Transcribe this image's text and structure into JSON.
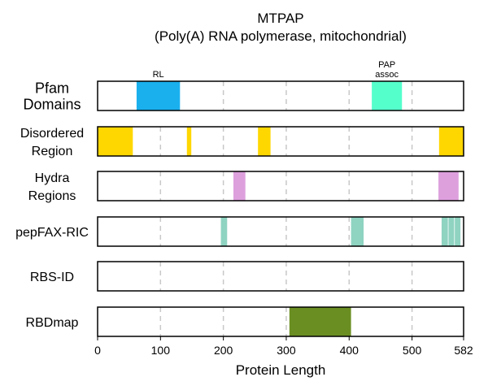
{
  "chart_data": {
    "type": "bar",
    "title_line1": "MTPAP",
    "title_line2": "(Poly(A) RNA polymerase, mitochondrial)",
    "xlabel": "Protein Length",
    "xlim": [
      0,
      582
    ],
    "xticks": [
      0,
      100,
      200,
      300,
      400,
      500,
      582
    ],
    "xtick_labels": [
      "0",
      "100",
      "200",
      "300",
      "400",
      "500",
      "582"
    ],
    "gridlines": [
      100,
      200,
      300,
      400,
      500
    ],
    "tracks": [
      {
        "key": "pfam",
        "label_lines": [
          "Pfam",
          "Domains"
        ],
        "segments": [
          {
            "start": 62,
            "end": 131,
            "color": "#1ab0ee",
            "label": [
              "RL"
            ]
          },
          {
            "start": 436,
            "end": 484,
            "color": "#55ffcc",
            "label": [
              "PAP",
              "assoc"
            ]
          }
        ]
      },
      {
        "key": "disordered",
        "label_lines": [
          "Disordered",
          "Region"
        ],
        "segments": [
          {
            "start": 0,
            "end": 56,
            "color": "#ffd700"
          },
          {
            "start": 142,
            "end": 149,
            "color": "#ffd700"
          },
          {
            "start": 255,
            "end": 275,
            "color": "#ffd700"
          },
          {
            "start": 543,
            "end": 582,
            "color": "#ffd700"
          }
        ]
      },
      {
        "key": "hydra",
        "label_lines": [
          "Hydra",
          "Regions"
        ],
        "segments": [
          {
            "start": 216,
            "end": 235,
            "color": "#dda0dd"
          },
          {
            "start": 542,
            "end": 574,
            "color": "#dda0dd"
          }
        ]
      },
      {
        "key": "pepfax",
        "label_lines": [
          "pepFAX-RIC"
        ],
        "segments": [
          {
            "start": 196,
            "end": 206,
            "color": "#8fd3c1"
          },
          {
            "start": 403,
            "end": 423,
            "color": "#8fd3c1"
          },
          {
            "start": 547,
            "end": 557,
            "color": "#8fd3c1"
          },
          {
            "start": 558,
            "end": 567,
            "color": "#8fd3c1"
          },
          {
            "start": 568,
            "end": 577,
            "color": "#8fd3c1"
          }
        ]
      },
      {
        "key": "rbsid",
        "label_lines": [
          "RBS-ID"
        ],
        "segments": []
      },
      {
        "key": "rbdmap",
        "label_lines": [
          "RBDmap"
        ],
        "segments": [
          {
            "start": 305,
            "end": 403,
            "color": "#6b8e23"
          }
        ]
      }
    ]
  }
}
